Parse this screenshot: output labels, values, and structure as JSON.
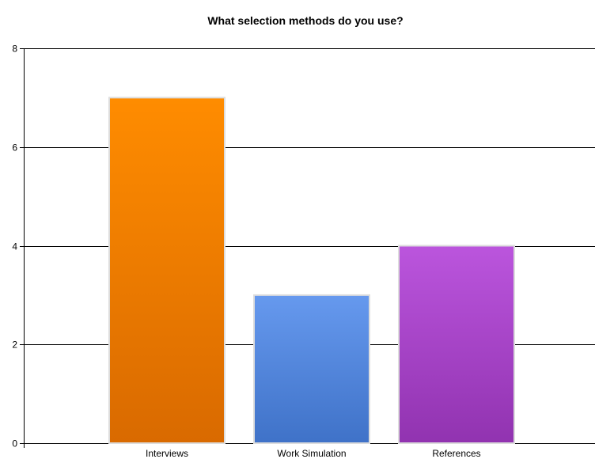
{
  "chart_data": {
    "type": "bar",
    "title": "What selection methods do you use?",
    "xlabel": "",
    "ylabel": "",
    "categories": [
      "Interviews",
      "Work Simulation",
      "References"
    ],
    "values": [
      7,
      3,
      4
    ],
    "ylim": [
      0,
      8
    ],
    "yticks": [
      0,
      2,
      4,
      6,
      8
    ],
    "grid": true,
    "legend": "none",
    "bar_colors": [
      {
        "top": "#FF8C00",
        "bottom": "#D96A00"
      },
      {
        "top": "#6699EE",
        "bottom": "#3F72C8"
      },
      {
        "top": "#BB55DD",
        "bottom": "#9133B0"
      }
    ],
    "bar_border_color": "#DDDDDD",
    "grid_color": "#000000"
  }
}
